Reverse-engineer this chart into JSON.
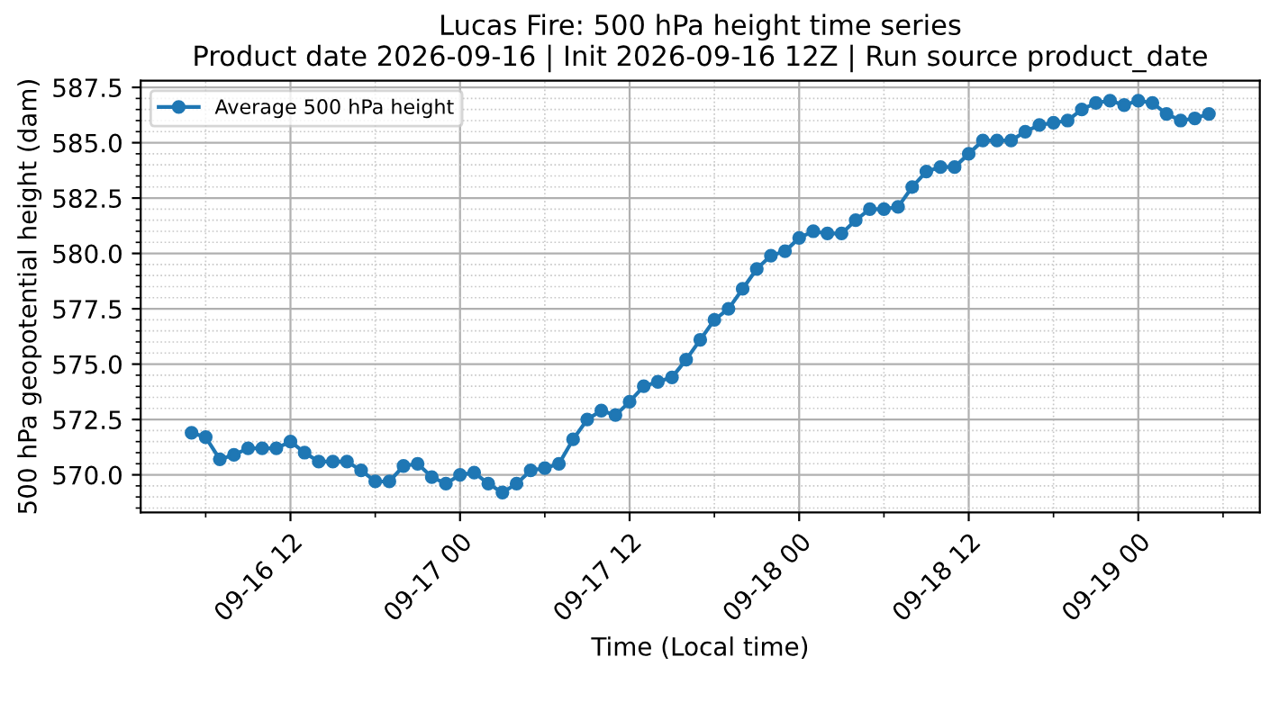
{
  "chart_data": {
    "type": "line",
    "title": "Lucas Fire: 500 hPa height time series\nProduct date 2026-09-16 | Init 2026-09-16 12Z | Run source product_date",
    "xlabel": "Time (Local time)",
    "ylabel": "500 hPa geopotential height (dam)",
    "x": [
      "2026-09-16T05:00",
      "2026-09-16T06:00",
      "2026-09-16T07:00",
      "2026-09-16T08:00",
      "2026-09-16T09:00",
      "2026-09-16T10:00",
      "2026-09-16T11:00",
      "2026-09-16T12:00",
      "2026-09-16T13:00",
      "2026-09-16T14:00",
      "2026-09-16T15:00",
      "2026-09-16T16:00",
      "2026-09-16T17:00",
      "2026-09-16T18:00",
      "2026-09-16T19:00",
      "2026-09-16T20:00",
      "2026-09-16T21:00",
      "2026-09-16T22:00",
      "2026-09-16T23:00",
      "2026-09-17T00:00",
      "2026-09-17T01:00",
      "2026-09-17T02:00",
      "2026-09-17T03:00",
      "2026-09-17T04:00",
      "2026-09-17T05:00",
      "2026-09-17T06:00",
      "2026-09-17T07:00",
      "2026-09-17T08:00",
      "2026-09-17T09:00",
      "2026-09-17T10:00",
      "2026-09-17T11:00",
      "2026-09-17T12:00",
      "2026-09-17T13:00",
      "2026-09-17T14:00",
      "2026-09-17T15:00",
      "2026-09-17T16:00",
      "2026-09-17T17:00",
      "2026-09-17T18:00",
      "2026-09-17T19:00",
      "2026-09-17T20:00",
      "2026-09-17T21:00",
      "2026-09-17T22:00",
      "2026-09-17T23:00",
      "2026-09-18T00:00",
      "2026-09-18T01:00",
      "2026-09-18T02:00",
      "2026-09-18T03:00",
      "2026-09-18T04:00",
      "2026-09-18T05:00",
      "2026-09-18T06:00",
      "2026-09-18T07:00",
      "2026-09-18T08:00",
      "2026-09-18T09:00",
      "2026-09-18T10:00",
      "2026-09-18T11:00",
      "2026-09-18T12:00",
      "2026-09-18T13:00",
      "2026-09-18T14:00",
      "2026-09-18T15:00",
      "2026-09-18T16:00",
      "2026-09-18T17:00",
      "2026-09-18T18:00",
      "2026-09-18T19:00",
      "2026-09-18T20:00",
      "2026-09-18T21:00",
      "2026-09-18T22:00",
      "2026-09-18T23:00",
      "2026-09-19T00:00",
      "2026-09-19T01:00",
      "2026-09-19T02:00",
      "2026-09-19T03:00",
      "2026-09-19T04:00",
      "2026-09-19T05:00"
    ],
    "series": [
      {
        "name": "Average 500 hPa height",
        "color": "#1f77b4",
        "values": [
          571.9,
          571.7,
          570.7,
          570.9,
          571.2,
          571.2,
          571.2,
          571.5,
          571.0,
          570.6,
          570.6,
          570.6,
          570.2,
          569.7,
          569.7,
          570.4,
          570.5,
          569.9,
          569.6,
          570.0,
          570.1,
          569.6,
          569.2,
          569.6,
          570.2,
          570.3,
          570.5,
          571.6,
          572.5,
          572.9,
          572.7,
          573.3,
          574.0,
          574.2,
          574.4,
          575.2,
          576.1,
          577.0,
          577.5,
          578.4,
          579.3,
          579.9,
          580.1,
          580.7,
          581.0,
          580.9,
          580.9,
          581.5,
          582.0,
          582.0,
          582.1,
          583.0,
          583.7,
          583.9,
          583.9,
          584.5,
          585.1,
          585.1,
          585.1,
          585.5,
          585.8,
          585.9,
          586.0,
          586.5,
          586.8,
          586.9,
          586.7,
          586.9,
          586.8,
          586.3,
          586.0,
          586.1,
          586.3
        ]
      }
    ],
    "xlim": [
      "2026-09-16T01:24",
      "2026-09-19T08:36"
    ],
    "xticks": [
      {
        "value": "2026-09-16T12:00",
        "label": "09-16 12"
      },
      {
        "value": "2026-09-17T00:00",
        "label": "09-17 00"
      },
      {
        "value": "2026-09-17T12:00",
        "label": "09-17 12"
      },
      {
        "value": "2026-09-18T00:00",
        "label": "09-18 00"
      },
      {
        "value": "2026-09-18T12:00",
        "label": "09-18 12"
      },
      {
        "value": "2026-09-19T00:00",
        "label": "09-19 00"
      }
    ],
    "ylim": [
      568.3,
      587.8
    ],
    "yticks": [
      {
        "value": 570,
        "label": "570.0"
      },
      {
        "value": 572.5,
        "label": "572.5"
      },
      {
        "value": 575,
        "label": "575.0"
      },
      {
        "value": 577.5,
        "label": "577.5"
      },
      {
        "value": 580,
        "label": "580.0"
      },
      {
        "value": 582.5,
        "label": "582.5"
      },
      {
        "value": 585,
        "label": "585.0"
      },
      {
        "value": 587.5,
        "label": "587.5"
      }
    ],
    "grid": true,
    "legend": "top left",
    "marker": "circle",
    "line_style": "solid"
  }
}
